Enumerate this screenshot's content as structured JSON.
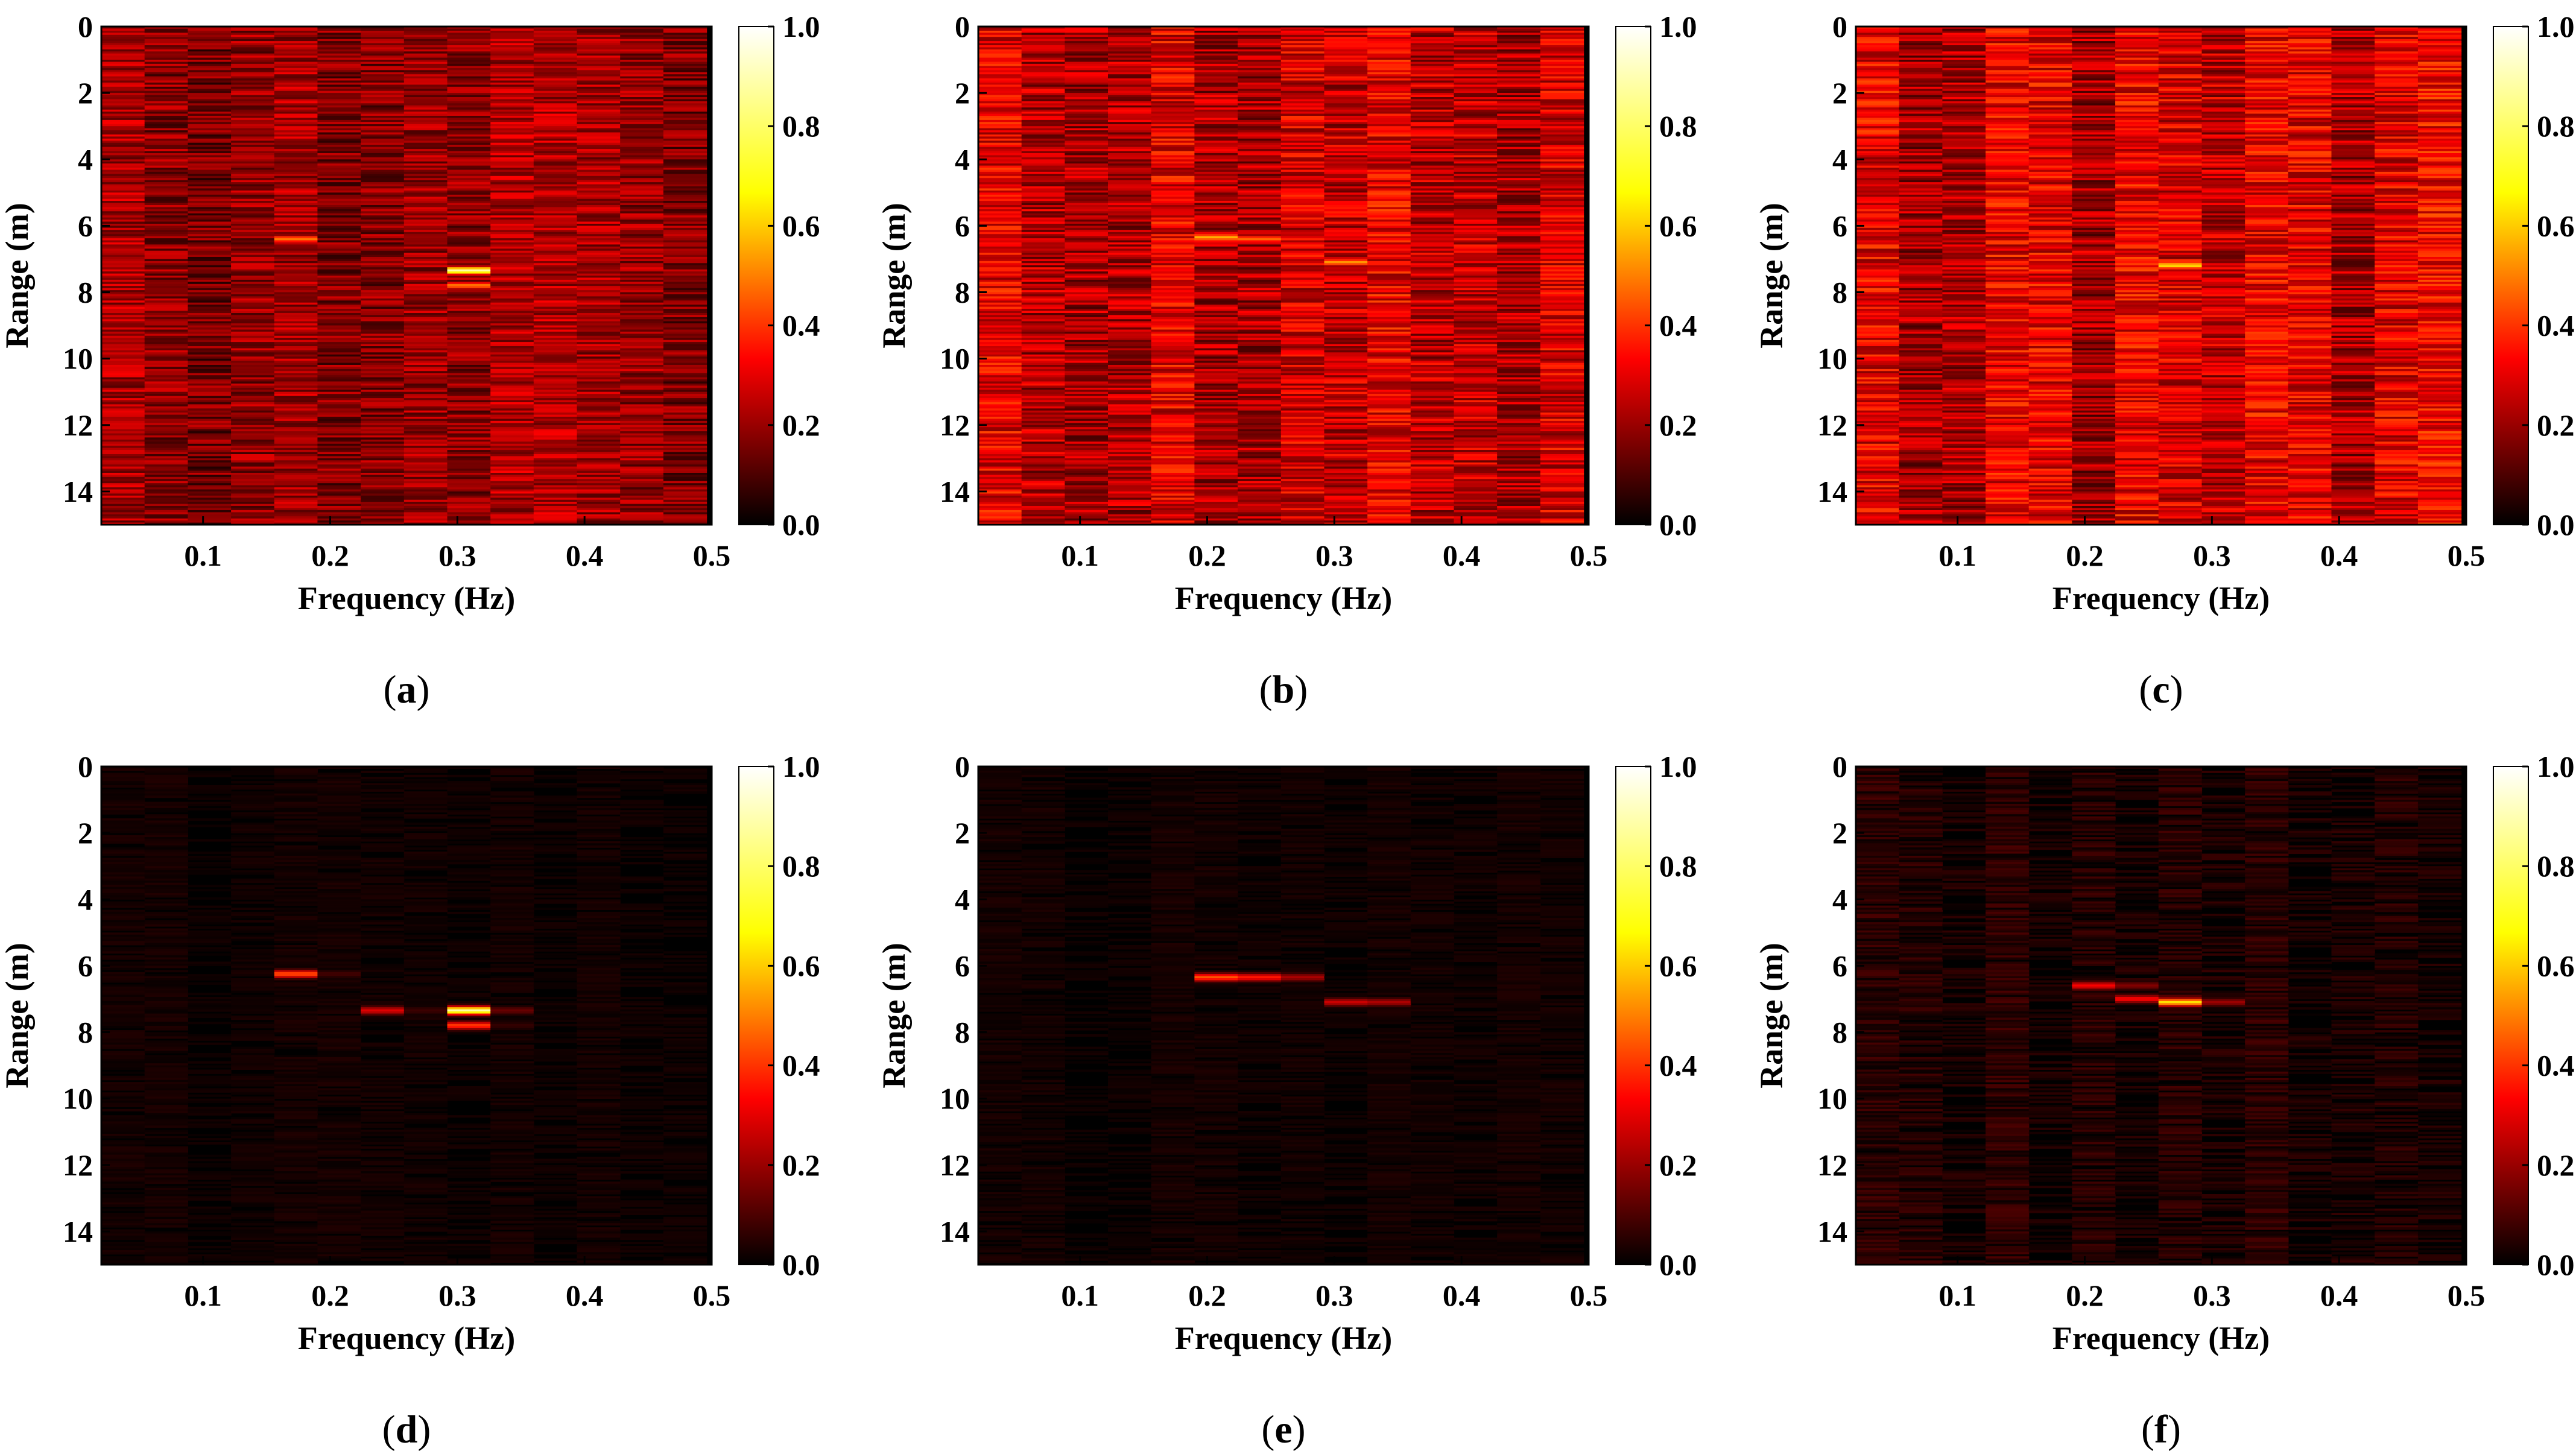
{
  "figure": {
    "colormap": {
      "name": "hot",
      "stops": [
        "#000000",
        "#ff0000",
        "#ffff00",
        "#ffffff"
      ]
    },
    "colorbar": {
      "ticks": [
        "0.0",
        "0.2",
        "0.4",
        "0.6",
        "0.8",
        "1.0"
      ]
    }
  },
  "chart_data": [
    {
      "id": "a",
      "panel_label": "a",
      "type": "heatmap",
      "xlabel": "Frequency (Hz)",
      "ylabel": "Range (m)",
      "xlim": [
        0.02,
        0.5
      ],
      "ylim": [
        15,
        0
      ],
      "xticks": [
        "0.1",
        "0.2",
        "0.3",
        "0.4",
        "0.5"
      ],
      "yticks": [
        "0",
        "2",
        "4",
        "6",
        "8",
        "10",
        "12",
        "14"
      ],
      "clim": [
        0.0,
        1.0
      ],
      "background_level": 0.22,
      "noise_amplitude": 0.12,
      "column_width_hz": 0.034,
      "peaks": [
        {
          "freq_hz": 0.18,
          "range_m": 6.4,
          "value": 0.62
        },
        {
          "freq_hz": 0.315,
          "range_m": 7.35,
          "value": 1.0
        },
        {
          "freq_hz": 0.315,
          "range_m": 7.8,
          "value": 0.6
        }
      ]
    },
    {
      "id": "b",
      "panel_label": "b",
      "type": "heatmap",
      "xlabel": "Frequency (Hz)",
      "ylabel": "Range (m)",
      "xlim": [
        0.02,
        0.5
      ],
      "ylim": [
        15,
        0
      ],
      "xticks": [
        "0.1",
        "0.2",
        "0.3",
        "0.4",
        "0.5"
      ],
      "yticks": [
        "0",
        "2",
        "4",
        "6",
        "8",
        "10",
        "12",
        "14"
      ],
      "clim": [
        0.0,
        1.0
      ],
      "background_level": 0.3,
      "noise_amplitude": 0.14,
      "column_width_hz": 0.034,
      "peaks": [
        {
          "freq_hz": 0.22,
          "range_m": 6.35,
          "value": 0.95
        },
        {
          "freq_hz": 0.255,
          "range_m": 6.4,
          "value": 0.85
        },
        {
          "freq_hz": 0.315,
          "range_m": 7.1,
          "value": 0.65
        },
        {
          "freq_hz": 0.49,
          "range_m": 6.4,
          "value": 0.5
        }
      ]
    },
    {
      "id": "c",
      "panel_label": "c",
      "type": "heatmap",
      "xlabel": "Frequency (Hz)",
      "ylabel": "Range (m)",
      "xlim": [
        0.02,
        0.5
      ],
      "ylim": [
        15,
        0
      ],
      "xticks": [
        "0.1",
        "0.2",
        "0.3",
        "0.4",
        "0.5"
      ],
      "yticks": [
        "0",
        "2",
        "4",
        "6",
        "8",
        "10",
        "12",
        "14"
      ],
      "clim": [
        0.0,
        1.0
      ],
      "background_level": 0.3,
      "noise_amplitude": 0.14,
      "column_width_hz": 0.034,
      "peaks": [
        {
          "freq_hz": 0.22,
          "range_m": 6.8,
          "value": 0.6
        },
        {
          "freq_hz": 0.255,
          "range_m": 7.1,
          "value": 0.65
        },
        {
          "freq_hz": 0.285,
          "range_m": 7.2,
          "value": 0.9
        }
      ]
    },
    {
      "id": "d",
      "panel_label": "d",
      "type": "heatmap",
      "xlabel": "Frequency (Hz)",
      "ylabel": "Range (m)",
      "xlim": [
        0.02,
        0.5
      ],
      "ylim": [
        15,
        0
      ],
      "xticks": [
        "0.1",
        "0.2",
        "0.3",
        "0.4",
        "0.5"
      ],
      "yticks": [
        "0",
        "2",
        "4",
        "6",
        "8",
        "10",
        "12",
        "14"
      ],
      "clim": [
        0.0,
        1.0
      ],
      "background_level": 0.02,
      "noise_amplitude": 0.02,
      "column_width_hz": 0.034,
      "peaks": [
        {
          "freq_hz": 0.18,
          "range_m": 6.25,
          "value": 0.55
        },
        {
          "freq_hz": 0.25,
          "range_m": 7.35,
          "value": 0.4
        },
        {
          "freq_hz": 0.315,
          "range_m": 7.35,
          "value": 1.0
        },
        {
          "freq_hz": 0.315,
          "range_m": 7.8,
          "value": 0.5
        }
      ]
    },
    {
      "id": "e",
      "panel_label": "e",
      "type": "heatmap",
      "xlabel": "Frequency (Hz)",
      "ylabel": "Range (m)",
      "xlim": [
        0.02,
        0.5
      ],
      "ylim": [
        15,
        0
      ],
      "xticks": [
        "0.1",
        "0.2",
        "0.3",
        "0.4",
        "0.5"
      ],
      "yticks": [
        "0",
        "2",
        "4",
        "6",
        "8",
        "10",
        "12",
        "14"
      ],
      "clim": [
        0.0,
        1.0
      ],
      "background_level": 0.02,
      "noise_amplitude": 0.02,
      "column_width_hz": 0.034,
      "peaks": [
        {
          "freq_hz": 0.22,
          "range_m": 6.35,
          "value": 0.75
        },
        {
          "freq_hz": 0.255,
          "range_m": 6.35,
          "value": 0.65
        },
        {
          "freq_hz": 0.325,
          "range_m": 7.1,
          "value": 0.55
        }
      ]
    },
    {
      "id": "f",
      "panel_label": "f",
      "type": "heatmap",
      "xlabel": "Frequency (Hz)",
      "ylabel": "Range (m)",
      "xlim": [
        0.02,
        0.5
      ],
      "ylim": [
        15,
        0
      ],
      "xticks": [
        "0.1",
        "0.2",
        "0.3",
        "0.4",
        "0.5"
      ],
      "yticks": [
        "0",
        "2",
        "4",
        "6",
        "8",
        "10",
        "12",
        "14"
      ],
      "clim": [
        0.0,
        1.0
      ],
      "background_level": 0.04,
      "noise_amplitude": 0.05,
      "column_width_hz": 0.034,
      "peaks": [
        {
          "freq_hz": 0.22,
          "range_m": 6.6,
          "value": 0.55
        },
        {
          "freq_hz": 0.255,
          "range_m": 7.0,
          "value": 0.6
        },
        {
          "freq_hz": 0.285,
          "range_m": 7.1,
          "value": 0.9
        }
      ]
    }
  ]
}
